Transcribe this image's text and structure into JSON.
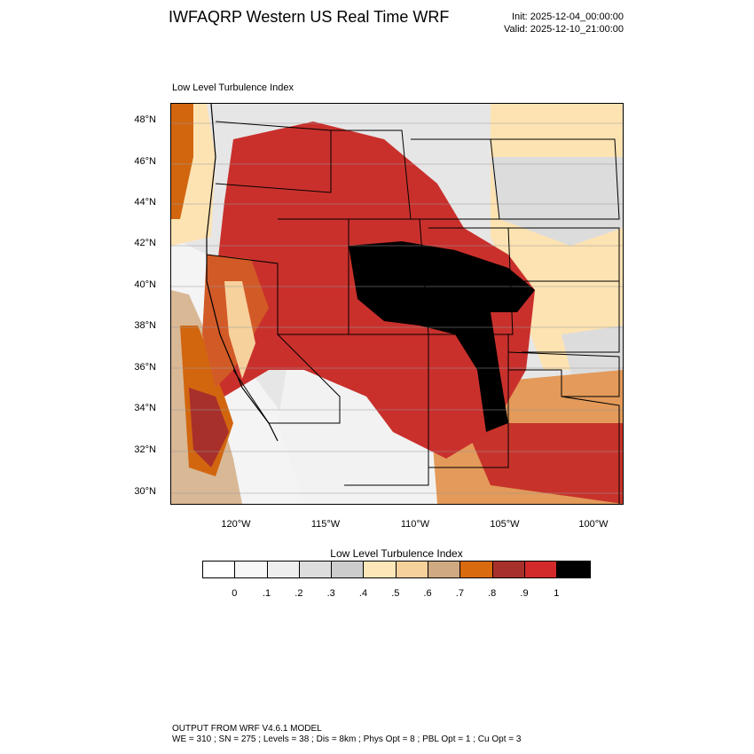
{
  "header": {
    "title": "IWFAQRP Western US Real Time WRF",
    "init": "Init: 2025-12-04_00:00:00",
    "valid": "Valid: 2025-12-10_21:00:00"
  },
  "field_title": "Low Level Turbulence Index",
  "map": {
    "lat_labels": [
      "48°N",
      "46°N",
      "44°N",
      "42°N",
      "40°N",
      "38°N",
      "36°N",
      "34°N",
      "32°N",
      "30°N"
    ],
    "lon_labels": [
      "120°W",
      "115°W",
      "110°W",
      "105°W",
      "100°W"
    ],
    "lat_values": [
      48,
      46,
      44,
      42,
      40,
      38,
      36,
      34,
      32,
      30
    ],
    "lon_values": [
      -120,
      -115,
      -110,
      -105,
      -100
    ]
  },
  "colorbar": {
    "title": "Low Level Turbulence Index",
    "labels": [
      "0",
      ".1",
      ".2",
      ".3",
      ".4",
      ".5",
      ".6",
      ".7",
      ".8",
      ".9",
      "1"
    ],
    "colors": [
      "#ffffff",
      "#f7f7f7",
      "#eeeeee",
      "#dddddd",
      "#cccccc",
      "#fde6b8",
      "#f6d19c",
      "#cfa982",
      "#d96a0d",
      "#a8302a",
      "#d22a2a",
      "#000000"
    ]
  },
  "footer": {
    "line1": "OUTPUT FROM WRF V4.6.1 MODEL",
    "line2": "WE = 310 ; SN = 275 ; Levels = 38 ; Dis = 8km ; Phys Opt = 8 ; PBL Opt = 1 ; Cu Opt = 3"
  }
}
